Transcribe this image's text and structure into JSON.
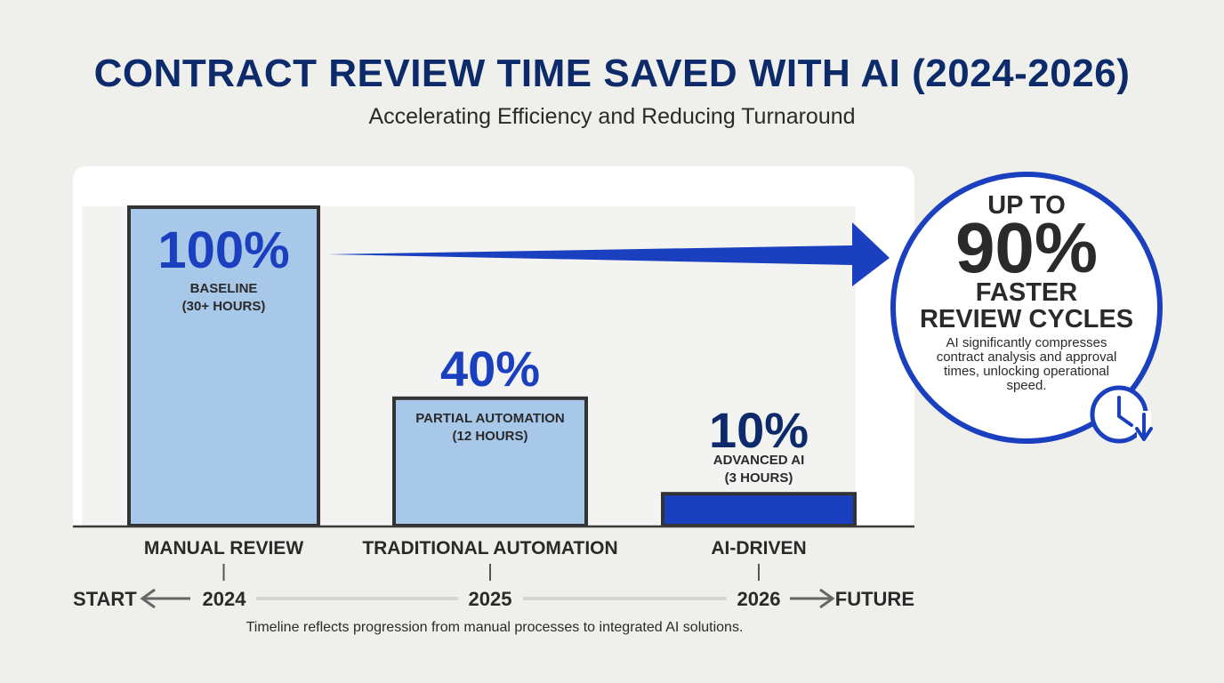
{
  "header": {
    "title": "CONTRACT REVIEW TIME SAVED WITH AI (2024-2026)",
    "subtitle": "Accelerating Efficiency and Reducing Turnaround"
  },
  "chart_data": {
    "type": "bar",
    "title": "CONTRACT REVIEW TIME SAVED WITH AI (2024-2026)",
    "subtitle": "Accelerating Efficiency and Reducing Turnaround",
    "categories": [
      "MANUAL REVIEW",
      "TRADITIONAL AUTOMATION",
      "AI-DRIVEN"
    ],
    "values": [
      100,
      40,
      10
    ],
    "value_labels": [
      "100%",
      "40%",
      "10%"
    ],
    "bar_labels": [
      [
        "BASELINE",
        "(30+ HOURS)"
      ],
      [
        "PARTIAL AUTOMATION",
        "(12 HOURS)"
      ],
      [
        "ADVANCED AI",
        "(3 HOURS)"
      ]
    ],
    "ylim": [
      0,
      100
    ],
    "grid": false,
    "colors": {
      "bar_fill": "#a8c8ea",
      "bar_highlight": "#1a3fbf",
      "bar_border": "#333333",
      "accent": "#1a3fbf",
      "dark_text": "#2a2a2a"
    }
  },
  "timeline": {
    "start": "START",
    "end": "FUTURE",
    "years": [
      "2024",
      "2025",
      "2026"
    ],
    "caption": "Timeline reflects progression from manual processes to integrated AI solutions."
  },
  "callout": {
    "line1": "UP TO",
    "big": "90%",
    "line2": "FASTER",
    "line3": "REVIEW CYCLES",
    "desc": [
      "AI significantly compresses",
      "contract analysis and approval",
      "times, unlocking operational",
      "speed."
    ],
    "icon": "clock-down-arrow-icon"
  }
}
